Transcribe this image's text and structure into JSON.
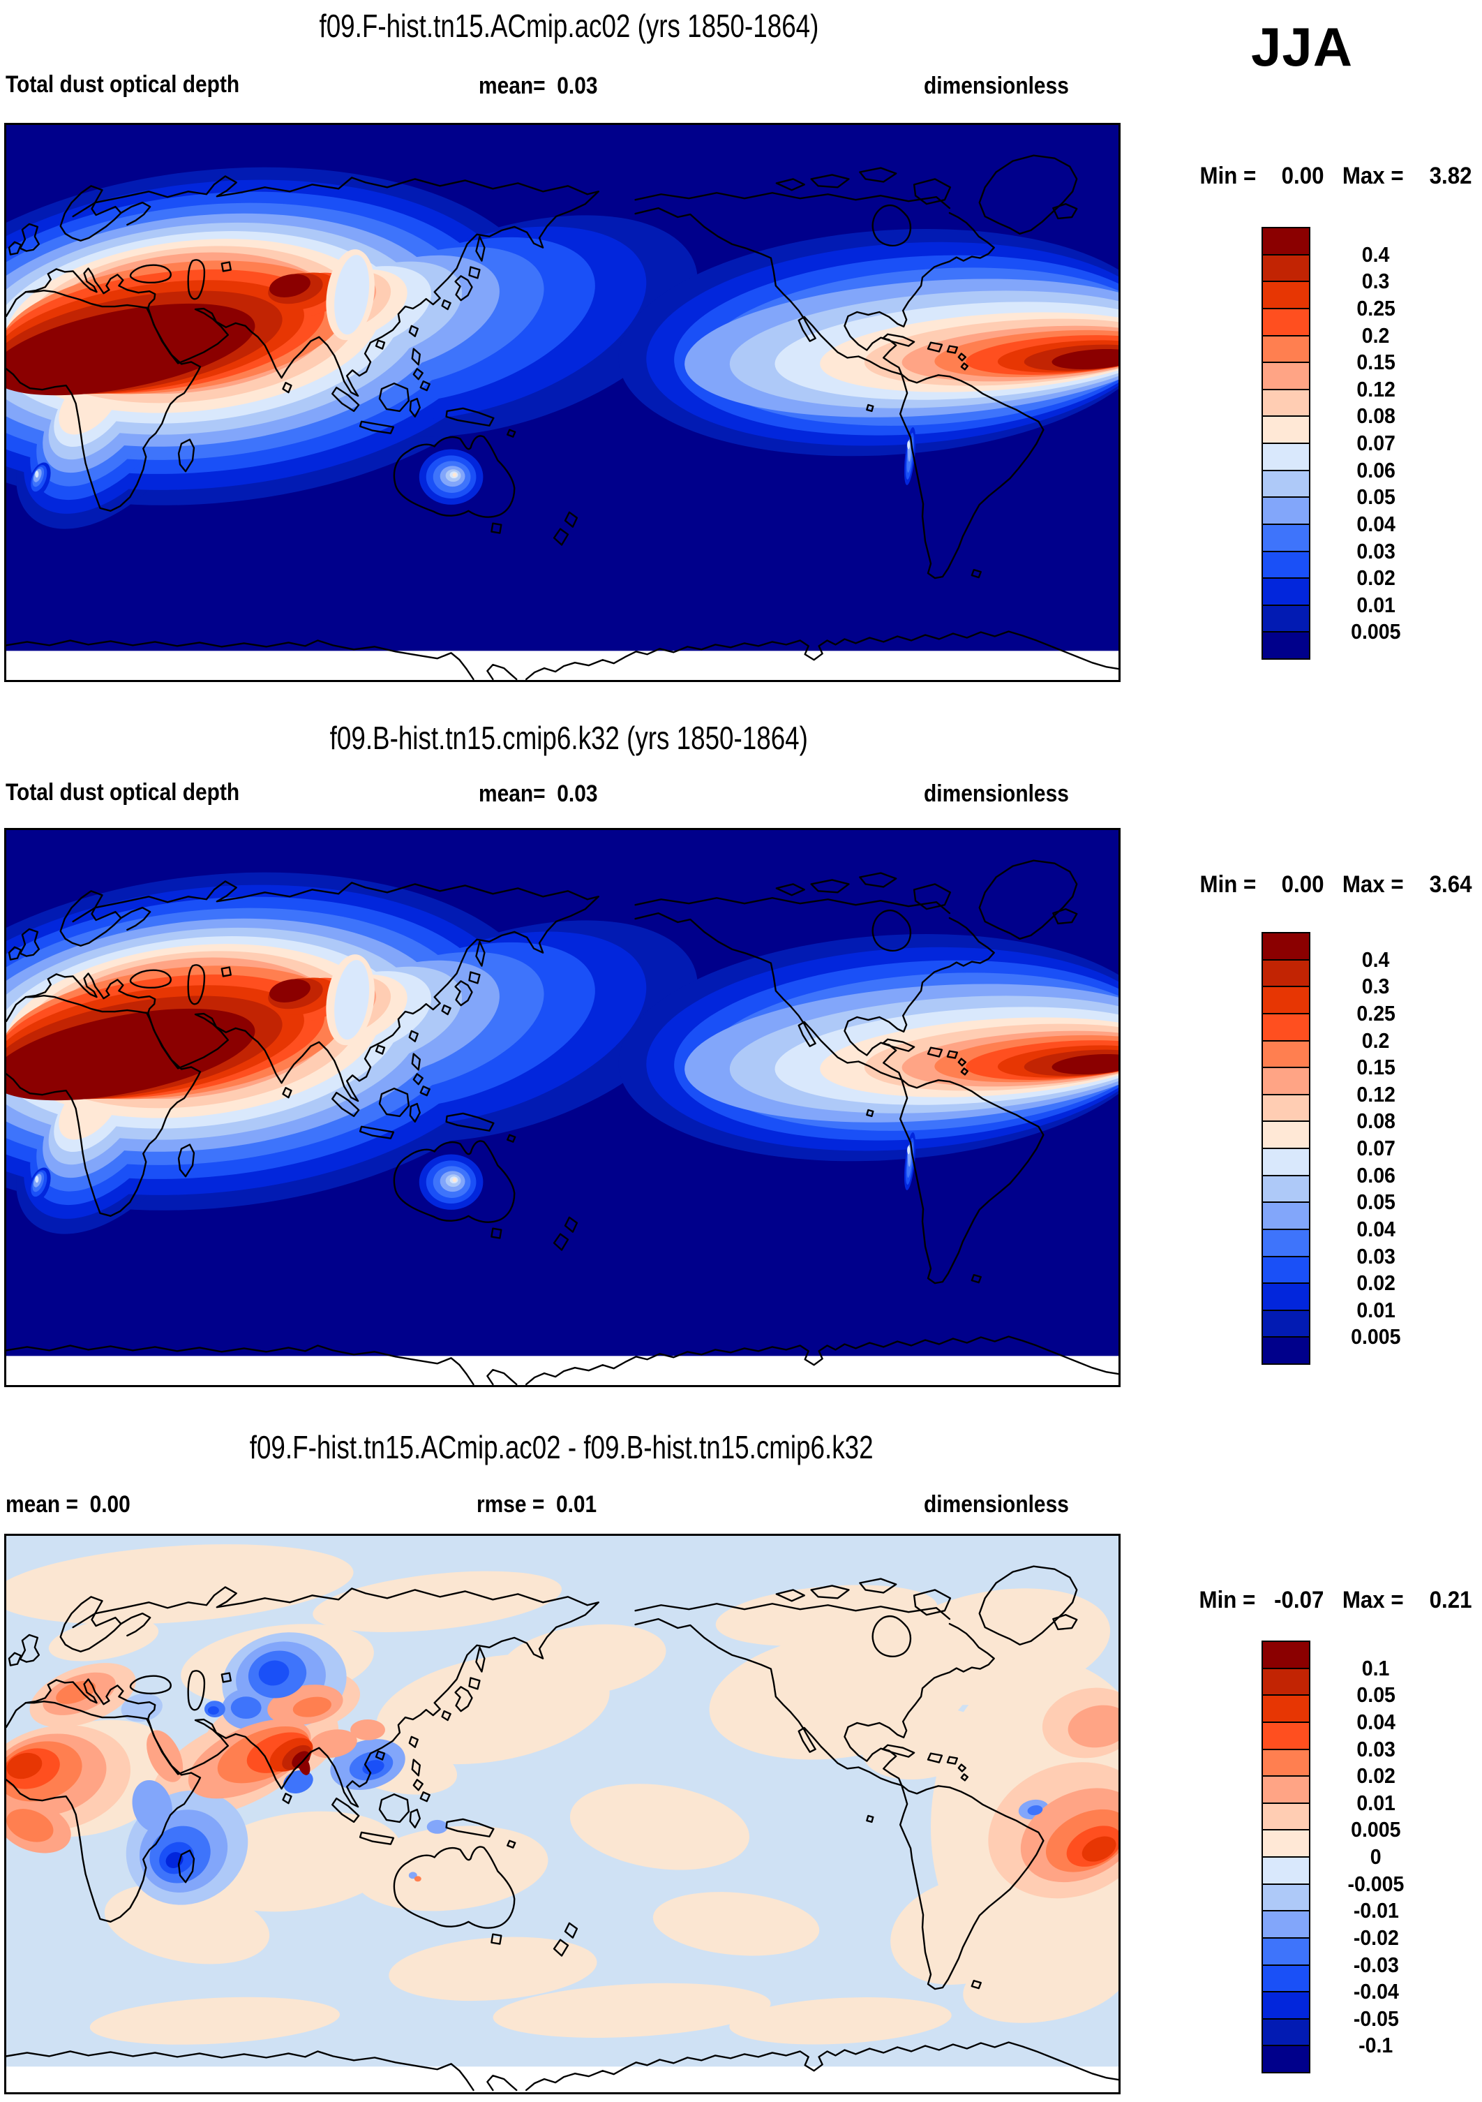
{
  "season": "JJA",
  "panels": [
    {
      "title": "f09.F-hist.tn15.ACmip.ac02 (yrs 1850-1864)",
      "variable": "Total dust optical depth",
      "mean_label": "mean=",
      "mean": "0.03",
      "units": "dimensionless",
      "min_label": "Min =",
      "min": "0.00",
      "max_label": "Max =",
      "max": "3.82"
    },
    {
      "title": "f09.B-hist.tn15.cmip6.k32 (yrs 1850-1864)",
      "variable": "Total dust optical depth",
      "mean_label": "mean=",
      "mean": "0.03",
      "units": "dimensionless",
      "min_label": "Min =",
      "min": "0.00",
      "max_label": "Max =",
      "max": "3.64"
    },
    {
      "title": "f09.F-hist.tn15.ACmip.ac02 - f09.B-hist.tn15.cmip6.k32",
      "mean_label": "mean =",
      "mean": "0.00",
      "rmse_label": "rmse =",
      "rmse": "0.01",
      "units": "dimensionless",
      "min_label": "Min =",
      "min": "-0.07",
      "max_label": "Max =",
      "max": "0.21"
    }
  ],
  "colorbars": {
    "absolute": {
      "levels": [
        "0.4",
        "0.3",
        "0.25",
        "0.2",
        "0.15",
        "0.12",
        "0.08",
        "0.07",
        "0.06",
        "0.05",
        "0.04",
        "0.03",
        "0.02",
        "0.01",
        "0.005"
      ],
      "colors": [
        "#8B0000",
        "#C22403",
        "#E73603",
        "#FF4F1F",
        "#FF7F50",
        "#FFA485",
        "#FFCDB3",
        "#FFE8D6",
        "#D9E8FC",
        "#AEC9F8",
        "#82A6FA",
        "#3E74FB",
        "#1A50F7",
        "#0226DC",
        "#021BB3",
        "#00008B"
      ]
    },
    "difference": {
      "levels": [
        "0.1",
        "0.05",
        "0.04",
        "0.03",
        "0.02",
        "0.01",
        "0.005",
        "0",
        "-0.005",
        "-0.01",
        "-0.02",
        "-0.03",
        "-0.04",
        "-0.05",
        "-0.1"
      ],
      "colors": [
        "#8B0000",
        "#C22403",
        "#E73603",
        "#FF4F1F",
        "#FF7F50",
        "#FFA485",
        "#FFCDB3",
        "#FFE8D6",
        "#D9E8FC",
        "#AEC9F8",
        "#82A6FA",
        "#3E74FB",
        "#1A50F7",
        "#0226DC",
        "#021BB3",
        "#00008B"
      ]
    }
  },
  "chart_data": [
    {
      "type": "heatmap",
      "subtype": "filled-contour global map",
      "title": "f09.F-hist.tn15.ACmip.ac02 (yrs 1850-1864)",
      "season": "JJA",
      "variable": "Total dust optical depth",
      "units": "dimensionless",
      "mean": 0.03,
      "min": 0.0,
      "max": 3.82,
      "contour_levels": [
        0.005,
        0.01,
        0.02,
        0.03,
        0.04,
        0.05,
        0.06,
        0.07,
        0.08,
        0.12,
        0.15,
        0.2,
        0.25,
        0.3,
        0.4
      ],
      "palette": "blue-red",
      "legend_position": "right",
      "notes": "Dust plume maxima over Sahara, Arabia, South/Central Asia and trans-Atlantic Saharan outflow; ocean background below 0.005"
    },
    {
      "type": "heatmap",
      "subtype": "filled-contour global map",
      "title": "f09.B-hist.tn15.cmip6.k32 (yrs 1850-1864)",
      "season": "JJA",
      "variable": "Total dust optical depth",
      "units": "dimensionless",
      "mean": 0.03,
      "min": 0.0,
      "max": 3.64,
      "contour_levels": [
        0.005,
        0.01,
        0.02,
        0.03,
        0.04,
        0.05,
        0.06,
        0.07,
        0.08,
        0.12,
        0.15,
        0.2,
        0.25,
        0.3,
        0.4
      ],
      "palette": "blue-red",
      "legend_position": "right"
    },
    {
      "type": "heatmap",
      "subtype": "filled-contour global difference map",
      "title": "f09.F-hist.tn15.ACmip.ac02 - f09.B-hist.tn15.cmip6.k32",
      "season": "JJA",
      "units": "dimensionless",
      "mean": 0.0,
      "rmse": 0.01,
      "min": -0.07,
      "max": 0.21,
      "contour_levels": [
        -0.1,
        -0.05,
        -0.04,
        -0.03,
        -0.02,
        -0.01,
        -0.005,
        0,
        0.005,
        0.01,
        0.02,
        0.03,
        0.04,
        0.05,
        0.1
      ],
      "palette": "blue-red",
      "legend_position": "right",
      "notes": "Positive differences over Sahara, Mediterranean, Persian Gulf and West-African outflow; negative over Kazakhstan, southern Arabia and Central Asia"
    }
  ]
}
